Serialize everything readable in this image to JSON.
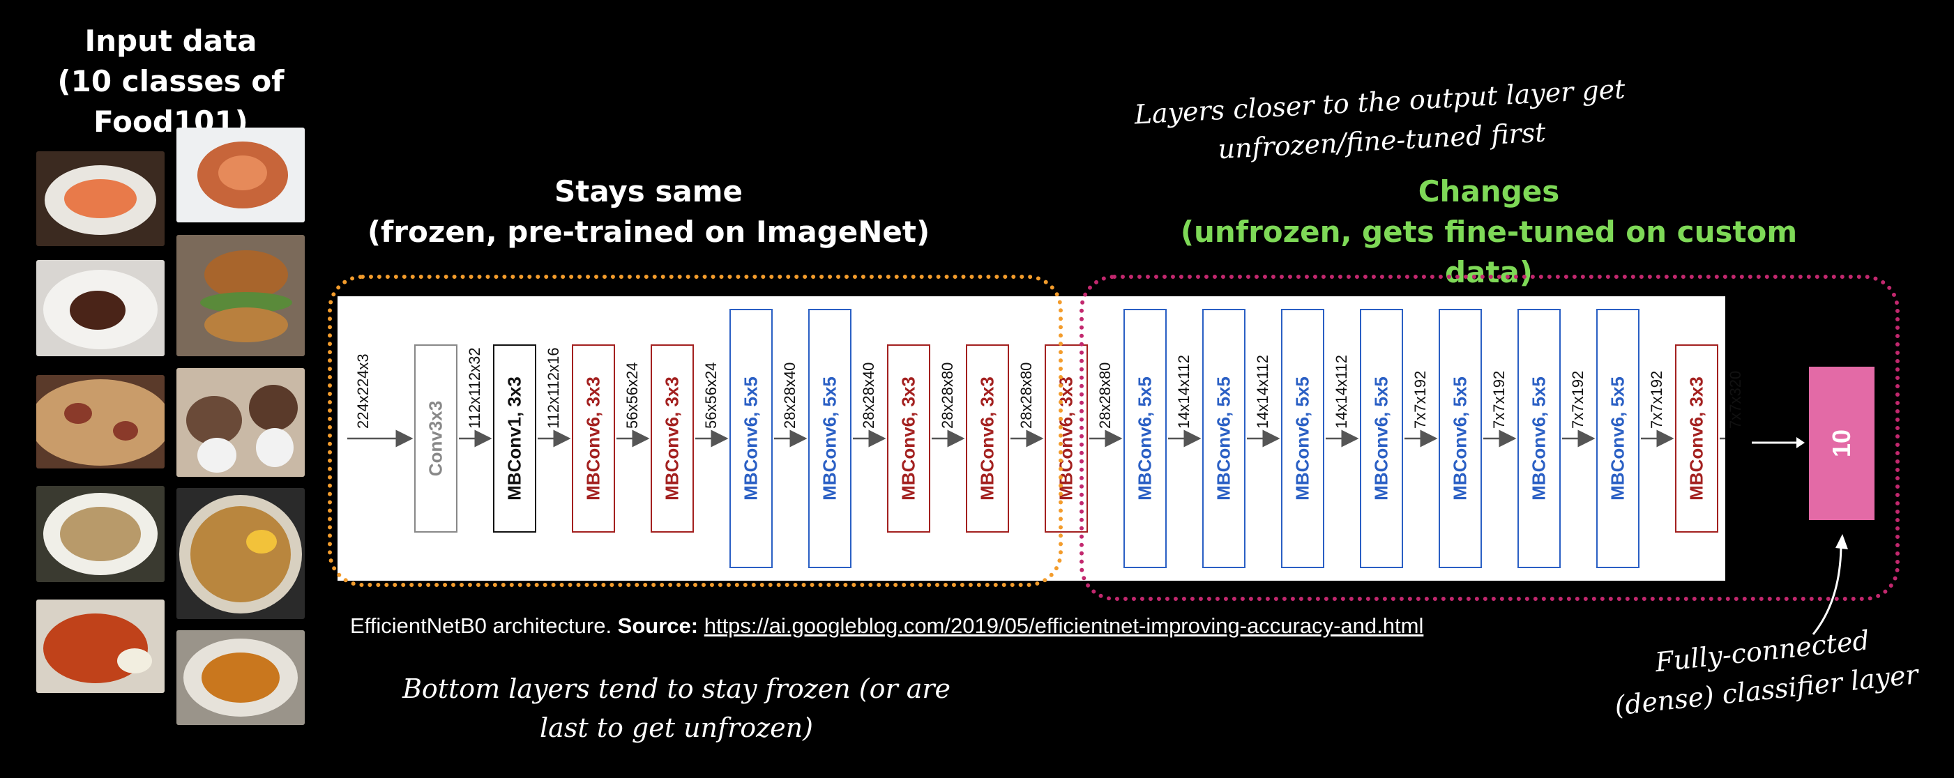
{
  "input": {
    "title_line1": "Input data",
    "title_line2": "(10 classes of Food101)"
  },
  "frozen": {
    "title_line1": "Stays same",
    "title_line2": "(frozen, pre-trained on ImageNet)"
  },
  "changes": {
    "title_line1": "Changes",
    "title_line2": "(unfrozen, gets fine-tuned on custom data)"
  },
  "notes": {
    "top_right_line1": "Layers closer to the output layer get",
    "top_right_line2": "unfrozen/fine-tuned first",
    "bottom_line1": "Bottom layers tend to stay frozen (or are",
    "bottom_line2": "last to get unfrozen)",
    "classifier_line1": "Fully-connected",
    "classifier_line2": "(dense) classifier layer"
  },
  "source": {
    "prefix": "EfficientNetB0 architecture. ",
    "label": "Source:",
    "url": "https://ai.googleblog.com/2019/05/efficientnet-improving-accuracy-and.html"
  },
  "colors": {
    "conv": "#888888",
    "mbconv1": "#111111",
    "mbconv6_3x3": "#a3201f",
    "mbconv6_5x5": "#2a5fc4",
    "frozen_outline": "#f39c2c",
    "unfrozen_outline": "#c2286e",
    "classifier": "#e36aa6",
    "green_title": "#7ed957"
  },
  "network": {
    "dims": [
      "224x224x3",
      "112x112x32",
      "112x112x16",
      "56x56x24",
      "56x56x24",
      "28x28x40",
      "28x28x40",
      "28x28x80",
      "28x28x80",
      "28x28x80",
      "14x14x112",
      "14x14x112",
      "14x14x112",
      "7x7x192",
      "7x7x192",
      "7x7x192",
      "7x7x192",
      "7x7x320"
    ],
    "blocks": [
      {
        "label": "Conv3x3",
        "kind": "conv"
      },
      {
        "label": "MBConv1, 3x3",
        "kind": "mbconv1"
      },
      {
        "label": "MBConv6, 3x3",
        "kind": "mb3"
      },
      {
        "label": "MBConv6, 3x3",
        "kind": "mb3"
      },
      {
        "label": "MBConv6, 5x5",
        "kind": "mb5"
      },
      {
        "label": "MBConv6, 5x5",
        "kind": "mb5"
      },
      {
        "label": "MBConv6, 3x3",
        "kind": "mb3"
      },
      {
        "label": "MBConv6, 3x3",
        "kind": "mb3"
      },
      {
        "label": "MBConv6, 3x3",
        "kind": "mb3"
      },
      {
        "label": "MBConv6, 5x5",
        "kind": "mb5"
      },
      {
        "label": "MBConv6, 5x5",
        "kind": "mb5"
      },
      {
        "label": "MBConv6, 5x5",
        "kind": "mb5"
      },
      {
        "label": "MBConv6, 5x5",
        "kind": "mb5"
      },
      {
        "label": "MBConv6, 5x5",
        "kind": "mb5"
      },
      {
        "label": "MBConv6, 5x5",
        "kind": "mb5"
      },
      {
        "label": "MBConv6, 5x5",
        "kind": "mb5"
      },
      {
        "label": "MBConv6, 3x3",
        "kind": "mb3"
      }
    ],
    "classifier_label": "10"
  }
}
